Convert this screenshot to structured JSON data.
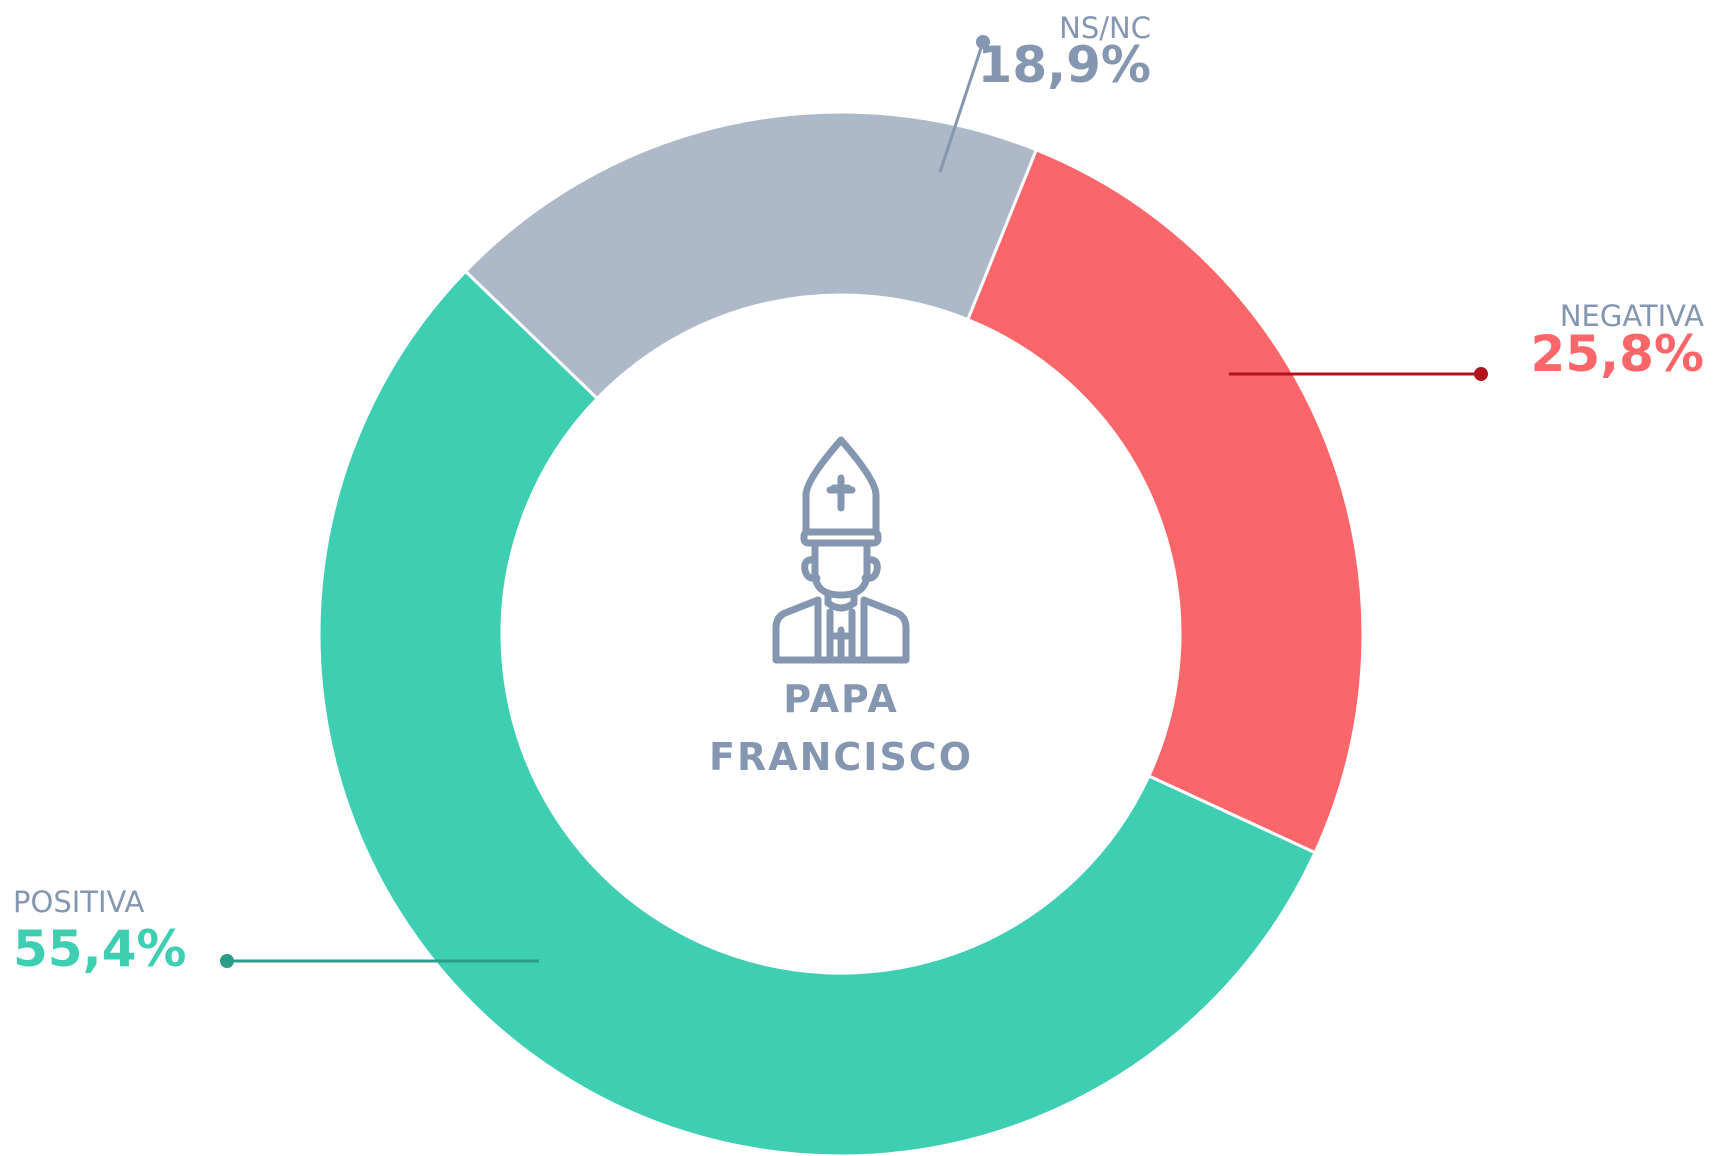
{
  "chart_data": {
    "type": "donut",
    "categories": [
      "NS/NC",
      "NEGATIVA",
      "POSITIVA"
    ],
    "values": [
      18.9,
      25.8,
      55.4
    ],
    "value_labels": [
      "18,9%",
      "25,8%",
      "55,4%"
    ],
    "colors": [
      "#adb8c9",
      "#fb666b",
      "#3ecfb2"
    ],
    "center_label": [
      "PAPA",
      "FRANCISCO"
    ]
  }
}
